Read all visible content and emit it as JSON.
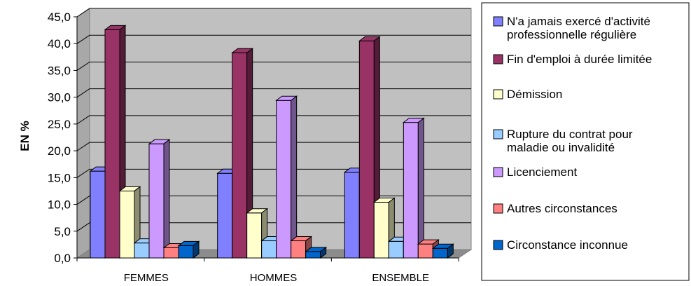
{
  "chart_data": {
    "type": "bar",
    "title": "",
    "xlabel": "",
    "ylabel": "EN  %",
    "ylim": [
      0,
      45
    ],
    "ytick_step": 5,
    "ytick_labels": [
      "0,0",
      "5,0",
      "10,0",
      "15,0",
      "20,0",
      "25,0",
      "30,0",
      "35,0",
      "40,0",
      "45,0"
    ],
    "grid": true,
    "legend_position": "right",
    "categories": [
      "FEMMES",
      "HOMMES",
      "ENSEMBLE"
    ],
    "series": [
      {
        "name": "N'a jamais exercé d'activité professionnelle régulière",
        "legend_lines": [
          "N'a jamais exercé d'activité",
          "professionnelle régulière"
        ],
        "color": "#8080ff",
        "values": [
          16.2,
          15.8,
          16.0
        ]
      },
      {
        "name": "Fin d'emploi à durée limitée",
        "legend_lines": [
          "Fin d'emploi à durée limitée"
        ],
        "color": "#993366",
        "values": [
          42.6,
          38.3,
          40.5
        ]
      },
      {
        "name": "Démission",
        "legend_lines": [
          "Démission"
        ],
        "color": "#ffffcc",
        "values": [
          12.5,
          8.4,
          10.4
        ]
      },
      {
        "name": "Rupture du contrat pour maladie ou invalidité",
        "legend_lines": [
          "Rupture du contrat pour",
          "maladie ou invalidité"
        ],
        "color": "#99ccff",
        "values": [
          2.8,
          3.2,
          3.1
        ]
      },
      {
        "name": "Licenciement",
        "legend_lines": [
          "Licenciement"
        ],
        "color": "#cc99ff",
        "values": [
          21.3,
          29.4,
          25.3
        ]
      },
      {
        "name": "Autres circonstances",
        "legend_lines": [
          "Autres circonstances"
        ],
        "color": "#ff8080",
        "values": [
          1.9,
          3.2,
          2.6
        ]
      },
      {
        "name": "Circonstance inconnue",
        "legend_lines": [
          "Circonstance inconnue"
        ],
        "color": "#0066cc",
        "values": [
          2.3,
          1.2,
          1.8
        ]
      }
    ]
  }
}
